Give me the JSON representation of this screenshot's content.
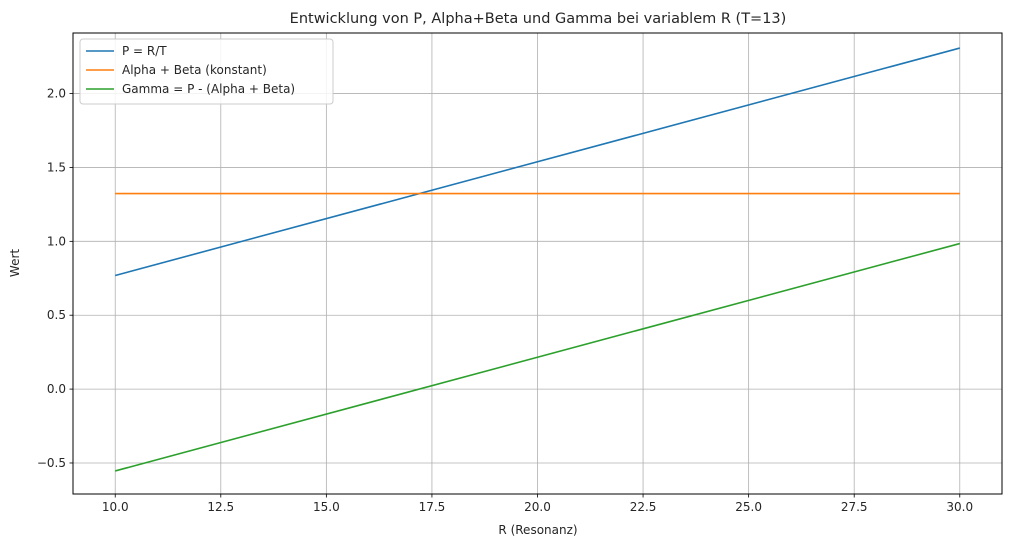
{
  "chart_data": {
    "type": "line",
    "title": "Entwicklung von P, Alpha+Beta und Gamma bei variablem R (T=13)",
    "xlabel": "R (Resonanz)",
    "ylabel": "Wert",
    "xlim": [
      9.0,
      31.0
    ],
    "ylim": [
      -0.71,
      2.41
    ],
    "grid": true,
    "legend_position": "top-left",
    "x_ticks": [
      10.0,
      12.5,
      15.0,
      17.5,
      20.0,
      22.5,
      25.0,
      27.5,
      30.0
    ],
    "x_tick_labels": [
      "10.0",
      "12.5",
      "15.0",
      "17.5",
      "20.0",
      "22.5",
      "25.0",
      "27.5",
      "30.0"
    ],
    "y_ticks": [
      -0.5,
      0.0,
      0.5,
      1.0,
      1.5,
      2.0
    ],
    "y_tick_labels": [
      "−0.5",
      "0.0",
      "0.5",
      "1.0",
      "1.5",
      "2.0"
    ],
    "x": [
      10,
      30
    ],
    "series": [
      {
        "name": "P = R/T",
        "color": "#1f77b4",
        "values": [
          0.769,
          2.308
        ]
      },
      {
        "name": "Alpha + Beta (konstant)",
        "color": "#ff7f0e",
        "values": [
          1.323,
          1.323
        ]
      },
      {
        "name": "Gamma = P - (Alpha + Beta)",
        "color": "#2ca02c",
        "values": [
          -0.554,
          0.985
        ]
      }
    ]
  }
}
